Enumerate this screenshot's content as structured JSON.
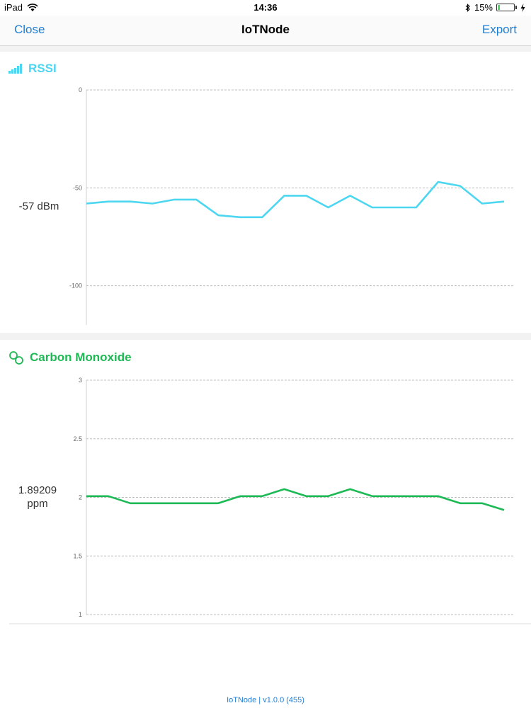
{
  "status_bar": {
    "device": "iPad",
    "time": "14:36",
    "battery_percent": "15%",
    "battery_level": 0.15
  },
  "nav": {
    "left_button": "Close",
    "title": "IoTNode",
    "right_button": "Export"
  },
  "sensors": [
    {
      "label": "RSSI",
      "icon": "signal-bars-icon",
      "color": "#4dd6f0",
      "readout": "-57 dBm"
    },
    {
      "label": "Carbon Monoxide",
      "icon": "molecule-icon",
      "color": "#1db954",
      "readout_value": "1.89209",
      "readout_unit": "ppm"
    }
  ],
  "chart_data": [
    {
      "type": "line",
      "title": "RSSI",
      "ylim": [
        -120,
        0
      ],
      "yticks": [
        0,
        -50,
        -100
      ],
      "grid": true,
      "color": "#4dd6f0",
      "series": [
        {
          "values": [
            -58,
            -57,
            -57,
            -58,
            -56,
            -56,
            -64,
            -65,
            -65,
            -54,
            -54,
            -60,
            -54,
            -60,
            -60,
            -60,
            -47,
            -49,
            -58,
            -57
          ]
        }
      ]
    },
    {
      "type": "line",
      "title": "Carbon Monoxide",
      "ylim": [
        1,
        3
      ],
      "yticks": [
        3,
        2.5,
        2,
        1.5,
        1
      ],
      "grid": true,
      "color": "#1db954",
      "series": [
        {
          "values": [
            2.01,
            2.01,
            1.95,
            1.95,
            1.95,
            1.95,
            1.95,
            2.01,
            2.01,
            2.07,
            2.01,
            2.01,
            2.07,
            2.01,
            2.01,
            2.01,
            2.01,
            1.95,
            1.95,
            1.89209
          ]
        }
      ]
    }
  ],
  "footer": {
    "text": "IoTNode | v1.0.0 (455)"
  }
}
